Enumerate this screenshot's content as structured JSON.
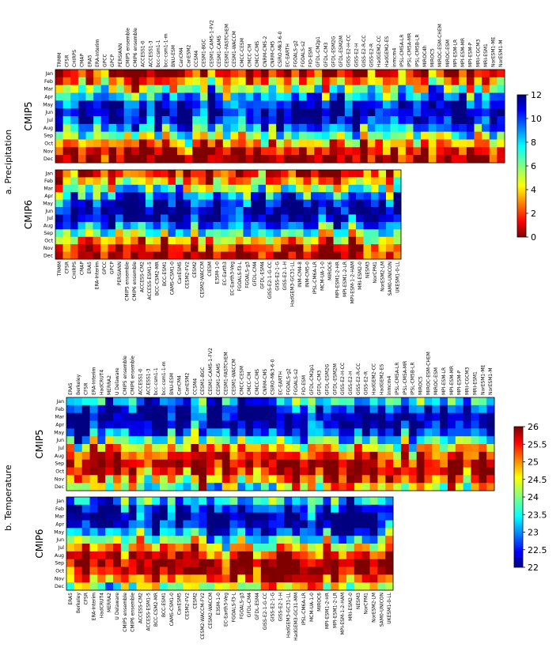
{
  "chart_data": [
    {
      "type": "heatmap",
      "panel_label": "a. Precipitation",
      "months": [
        "Jan",
        "Feb",
        "Mar",
        "Apr",
        "May",
        "Jun",
        "Jul",
        "Aug",
        "Sep",
        "Oct",
        "Nov",
        "Dec"
      ],
      "colorbar": {
        "min": 0,
        "max": 12,
        "ticks": [
          0,
          2,
          4,
          6,
          8,
          10,
          12
        ],
        "colormap": "jet",
        "reversed": true
      },
      "groups": [
        {
          "name": "CMIP5",
          "models": [
            "TRMM",
            "CFSR",
            "CHIRPS",
            "CMAP",
            "ERA5",
            "ERA-Interim",
            "GPCC",
            "GPCP",
            "PERSIANN",
            "CMIP5 ensemble",
            "CMIP6 ensemble",
            "ACCESS1-0",
            "ACCESS1-3",
            "bcc-csm1-1",
            "bcc-csm1-1-m",
            "BNU-ESM",
            "CanCM4",
            "CanESM2",
            "CCSM4",
            "CESM1-BGC",
            "CESM1-CAM5-1-FV2",
            "CESM1-CAM5",
            "CESM1-FASTCHEM",
            "CESM1-WACCM",
            "CMCC-CESM",
            "CMCC-CM",
            "CMCC-CMS",
            "CNRM-CM5-2",
            "CNRM-CM5",
            "CSIRO-Mk3-6-0",
            "EC-EARTH",
            "FGOALS-g2",
            "FGOALS-s2",
            "FIO-ESM",
            "GFDL-CM2p1",
            "GFDL-CM3",
            "GFDL-ESM2G",
            "GFDL-ESM2M",
            "GISS-E2-H-CC",
            "GISS-E2-H",
            "GISS-E2-R-CC",
            "GISS-E2-R",
            "HadGEM2-CC",
            "HadGEM2-ES",
            "inmcm4",
            "IPSL-CM5A-LR",
            "IPSL-CM5A-MR",
            "IPSL-CM5B-LR",
            "MIROC4h",
            "MIROC5",
            "MIROC-ESM-CHEM",
            "MIROC-ESM",
            "MPI-ESM-LR",
            "MPI-ESM-MR",
            "MPI-ESM-P",
            "MRI-CGCM3",
            "MRI-ESM1",
            "NorESM1-ME",
            "NorESM1-M"
          ]
        },
        {
          "name": "CMIP6",
          "models": [
            "TRMM",
            "CFSR",
            "CHIRPS",
            "CMAP",
            "ERA5",
            "ERA-Interim",
            "GPCC",
            "GPCP",
            "PERSIANN",
            "CMIP5 ensemble",
            "CMIP6 ensemble",
            "ACCESS-CM2",
            "ACCESS-ESM1-5",
            "BCC-CSM2-MR",
            "BCC-ESM1",
            "CAMS-CSM1-0",
            "CanESM5",
            "CESM2-FV2",
            "CESM2",
            "CESM2-WACCM",
            "CIESM",
            "E3SM-1-0",
            "EC-Earth3",
            "EC-Earth3-Veg",
            "FGOALS-f3-L",
            "FGOALS-g3",
            "GFDL-CM4",
            "GFDL-ESM4",
            "GISS-E2-1-G-CC",
            "GISS-E2-1-G",
            "GISS-E2-1-H",
            "HadGEM3-GC31-LL",
            "INM-CM4-8",
            "INM-CM5-0",
            "IPSL-CM6A-LR",
            "MCM-UA-1-0",
            "MIROC6",
            "MPI-ESM1-2-HR",
            "MPI-ESM1-2-LR",
            "MPI-ESM-1-2-HAM",
            "MRI-ESM2-0",
            "NESM3",
            "NorCPM1",
            "NorESM2-LM",
            "SAM0-UNICON",
            "UKESM1-0-LL"
          ]
        }
      ]
    },
    {
      "type": "heatmap",
      "panel_label": "b. Temperature",
      "months": [
        "Jan",
        "Feb",
        "Mar",
        "Apr",
        "May",
        "Jun",
        "Jul",
        "Aug",
        "Sep",
        "Oct",
        "Nov",
        "Dec"
      ],
      "colorbar": {
        "min": 22,
        "max": 26,
        "ticks": [
          22,
          22.5,
          23,
          23.5,
          24,
          24.5,
          25,
          25.5,
          26
        ],
        "colormap": "jet",
        "reversed": false
      },
      "groups": [
        {
          "name": "CMIP5",
          "models": [
            "ERA5",
            "Berkeley",
            "CFSR",
            "ERA-Interim",
            "HadCRUT4",
            "MERRA2",
            "U Delaware",
            "CMIP5 ensemble",
            "CMIP6 ensemble",
            "ACCESS1-0",
            "ACCESS1-3",
            "bcc-csm1-1",
            "bcc-csm1-1-m",
            "BNU-ESM",
            "CanCM4",
            "CanESM2",
            "CCSM4",
            "CESM1-BGC",
            "CESM1-CAM5-1-FV2",
            "CESM1-CAM5",
            "CESM1-FASTCHEM",
            "CESM1-WACCM",
            "CMCC-CESM",
            "CMCC-CM",
            "CMCC-CMS",
            "CNRM-CM5",
            "CSIRO-Mk3-6-0",
            "EC-EARTH",
            "FGOALS-g2",
            "FGOALS-s2",
            "FIO-ESM",
            "GFDL-CM2p1",
            "GFDL-CM3",
            "GFDL-ESM2G",
            "GFDL-ESM2M",
            "GISS-E2-H-CC",
            "GISS-E2-H",
            "GISS-E2-R-CC",
            "GISS-E2-R",
            "HadGEM2-CC",
            "HadGEM2-ES",
            "inmcm4",
            "IPSL-CM5A-LR",
            "IPSL-CM5A-MR",
            "IPSL-CM5B-LR",
            "MIROC5",
            "MIROC-ESM-CHEM",
            "MIROC-ESM",
            "MPI-ESM-LR",
            "MPI-ESM-MR",
            "MPI-ESM-P",
            "MRI-CGCM3",
            "MRI-ESM1",
            "NorESM1-ME",
            "NorESM1-M"
          ]
        },
        {
          "name": "CMIP6",
          "models": [
            "ERA5",
            "Berkeley",
            "CFSR",
            "ERA-Interim",
            "HadCRUT4",
            "MERRA2",
            "U Delaware",
            "CMIP5 ensemble",
            "CMIP6 ensemble",
            "ACCESS-CM2",
            "ACCESS-ESM1-5",
            "BCC-CSM2-MR",
            "BCC-ESM1",
            "CAMS-CSM1-0",
            "CanESM5",
            "CESM2-FV2",
            "CESM2",
            "CESM2-WACCM-FV2",
            "CESM2-WACCM",
            "E3SM-1-0",
            "EC-Earth3-Veg",
            "FGOALS-f3-L",
            "FGOALS-g3",
            "GFDL-CM4",
            "GFDL-ESM4",
            "GISS-E2-1-G-CC",
            "GISS-E2-1-G",
            "GISS-E2-1-H",
            "HadGEM3-GC31-LL",
            "HadGEM3-GC31-MM",
            "IPSL-CM6A-LR",
            "MCM-UA-1-0",
            "MIROC6",
            "MPI-ESM1-2-HR",
            "MPI-ESM1-2-LR",
            "MPI-ESM-1-2-HAM",
            "MRI-ESM2-0",
            "NESM3",
            "NorCPM1",
            "NorESM2-LM",
            "SAM0-UNICON",
            "UKESM1-0-LL"
          ]
        }
      ]
    }
  ]
}
